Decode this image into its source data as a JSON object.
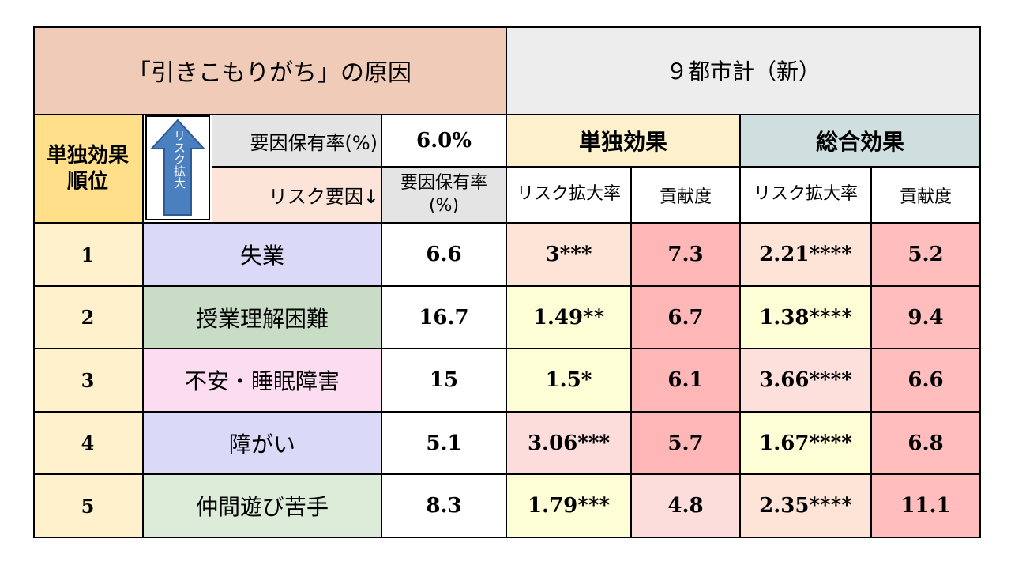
{
  "title": "「引きこもりがち」の原因",
  "region": "９都市計（新）",
  "header": {
    "rank_label": "単独効果\n順位",
    "arrow_text": "リスク拡大",
    "factor_rate_label": "要因保有率(%)",
    "factor_rate_value": "6.0%",
    "risk_factor_label": "リスク要因↓",
    "rate_col_label": "要因保有率(%)",
    "single_effect": "単独効果",
    "total_effect": "総合効果",
    "risk_ratio": "リスク拡大率",
    "contribution": "貢献度"
  },
  "rows": [
    {
      "rank": "1",
      "factor": "失業",
      "rate": "6.6",
      "single_risk": "3***",
      "single_contrib": "7.3",
      "total_risk": "2.21****",
      "total_contrib": "5.2"
    },
    {
      "rank": "2",
      "factor": "授業理解困難",
      "rate": "16.7",
      "single_risk": "1.49**",
      "single_contrib": "6.7",
      "total_risk": "1.38****",
      "total_contrib": "9.4"
    },
    {
      "rank": "3",
      "factor": "不安・睡眠障害",
      "rate": "15",
      "single_risk": "1.5*",
      "single_contrib": "6.1",
      "total_risk": "3.66****",
      "total_contrib": "6.6"
    },
    {
      "rank": "4",
      "factor": "障がい",
      "rate": "5.1",
      "single_risk": "3.06***",
      "single_contrib": "5.7",
      "total_risk": "1.67****",
      "total_contrib": "6.8"
    },
    {
      "rank": "5",
      "factor": "仲間遊び苦手",
      "rate": "8.3",
      "single_risk": "1.79***",
      "single_contrib": "4.8",
      "total_risk": "2.35****",
      "total_contrib": "11.1"
    }
  ],
  "colors": {
    "title_bg": "#f0cbb8",
    "region_bg": "#ededed",
    "rank_bg": "#fff1cc",
    "rank_header_bg": "#ffdf8a",
    "single_header_bg": "#fdf0cc",
    "total_header_bg": "#cfdfe0",
    "rate_header_bg": "#ffffff"
  }
}
